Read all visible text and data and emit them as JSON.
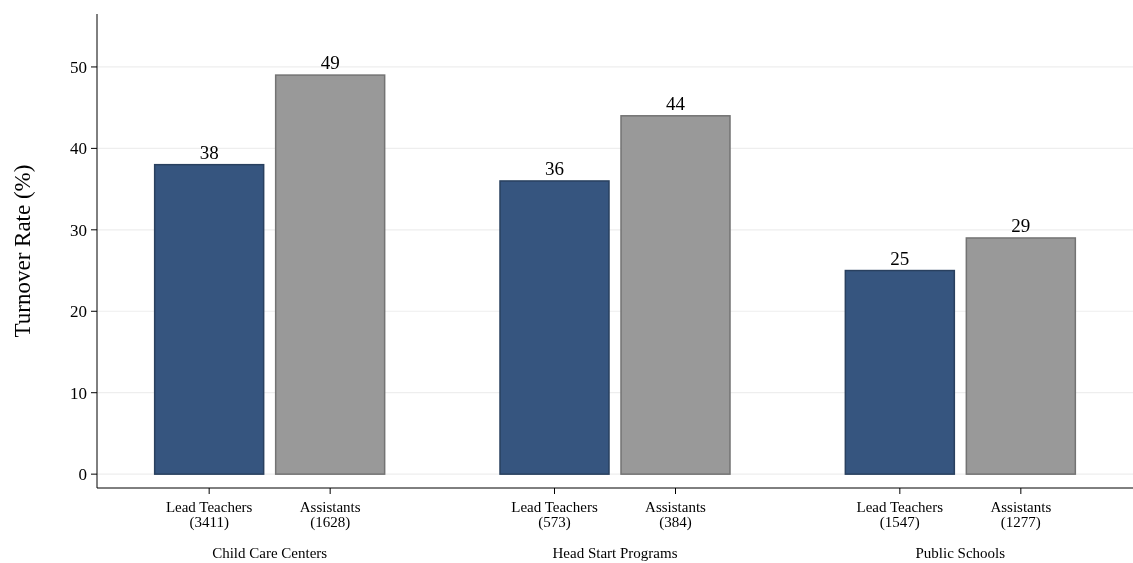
{
  "chart_data": {
    "type": "bar",
    "ylabel": "Turnover Rate (%)",
    "categories": [
      "Lead Teachers\n(3411)",
      "Assistants\n(1628)",
      "Lead Teachers\n(573)",
      "Assistants\n(384)",
      "Lead Teachers\n(1547)",
      "Assistants\n(1277)"
    ],
    "values": [
      38,
      49,
      36,
      44,
      25,
      29
    ],
    "colors": [
      "#36557f",
      "#999999",
      "#36557f",
      "#999999",
      "#36557f",
      "#999999"
    ],
    "data_labels": true,
    "ylim": [
      -1.7,
      56.5
    ],
    "yticks": [
      0,
      10,
      20,
      30,
      40,
      50
    ],
    "grid": "y",
    "annotations": [
      "Child Care Centers",
      "Head Start Programs",
      "Public Schools"
    ]
  }
}
